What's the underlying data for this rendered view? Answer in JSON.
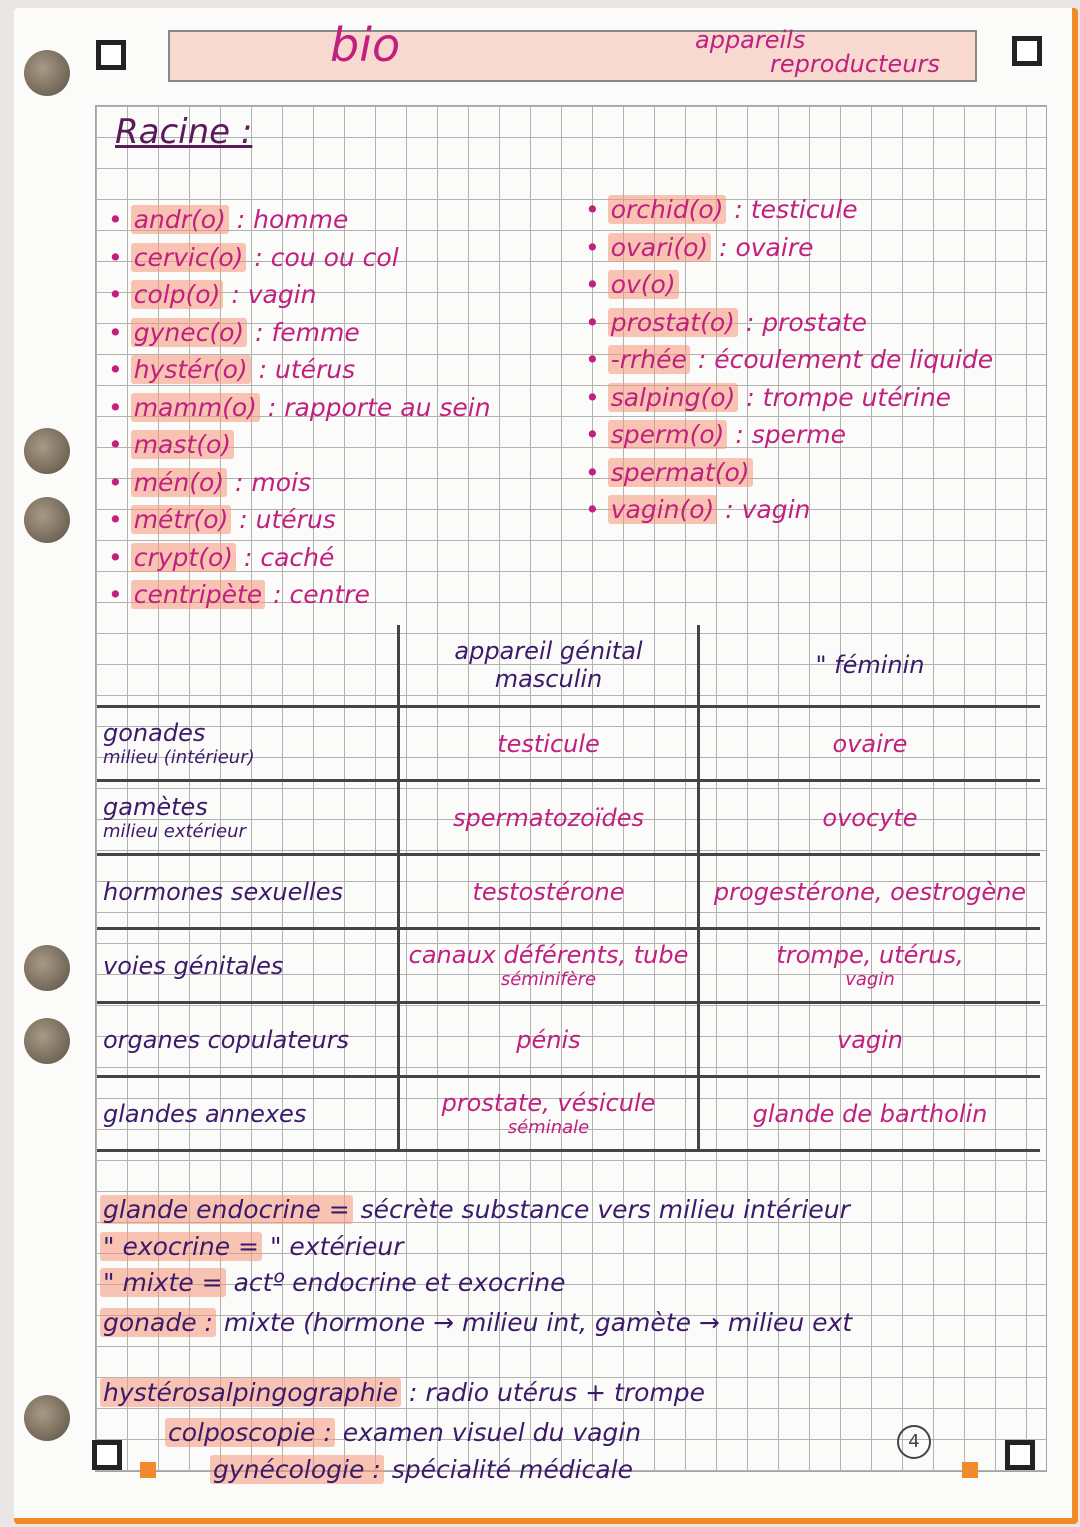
{
  "header": {
    "title": "bio",
    "subtitle_line1": "appareils",
    "subtitle_line2": "reproducteurs"
  },
  "section_heading": "Racine :",
  "roots_left": [
    {
      "root": "andr(o)",
      "meaning": "homme"
    },
    {
      "root": "cervic(o)",
      "meaning": "cou ou col"
    },
    {
      "root": "colp(o)",
      "meaning": "vagin"
    },
    {
      "root": "gynec(o)",
      "meaning": "femme"
    },
    {
      "root": "hystér(o)",
      "meaning": "utérus"
    },
    {
      "root": "mamm(o)",
      "meaning": "rapporte au sein"
    },
    {
      "root": "mast(o)",
      "meaning": ""
    },
    {
      "root": "mén(o)",
      "meaning": "mois"
    },
    {
      "root": "métr(o)",
      "meaning": "utérus"
    },
    {
      "root": "crypt(o)",
      "meaning": "caché"
    },
    {
      "root": "centripète",
      "meaning": "centre"
    }
  ],
  "roots_right": [
    {
      "root": "orchid(o)",
      "meaning": "testicule"
    },
    {
      "root": "ovari(o)",
      "meaning": "ovaire"
    },
    {
      "root": "ov(o)",
      "meaning": ""
    },
    {
      "root": "prostat(o)",
      "meaning": "prostate"
    },
    {
      "root": "-rrhée",
      "meaning": "écoulement de liquide"
    },
    {
      "root": "salping(o)",
      "meaning": "trompe utérine"
    },
    {
      "root": "sperm(o)",
      "meaning": "sperme"
    },
    {
      "root": "spermat(o)",
      "meaning": ""
    },
    {
      "root": "vagin(o)",
      "meaning": "vagin"
    }
  ],
  "table": {
    "headers": [
      "",
      "appareil génital masculin",
      "\" féminin"
    ],
    "rows": [
      {
        "label": "gonades",
        "note": "milieu (intérieur)",
        "male": "testicule",
        "male_note": "",
        "female": "ovaire",
        "female_note": ""
      },
      {
        "label": "gamètes",
        "note": "milieu extérieur",
        "male": "spermatozoïdes",
        "male_note": "",
        "female": "ovocyte",
        "female_note": ""
      },
      {
        "label": "hormones sexuelles",
        "note": "",
        "male": "testostérone",
        "male_note": "",
        "female": "progestérone, oestrogène",
        "female_note": ""
      },
      {
        "label": "voies génitales",
        "note": "",
        "male": "canaux déférents, tube",
        "male_note": "séminifère",
        "female": "trompe, utérus,",
        "female_note": "vagin"
      },
      {
        "label": "organes copulateurs",
        "note": "",
        "male": "pénis",
        "male_note": "",
        "female": "vagin",
        "female_note": ""
      },
      {
        "label": "glandes annexes",
        "note": "",
        "male": "prostate, vésicule",
        "male_note": "séminale",
        "female": "glande de bartholin",
        "female_note": ""
      }
    ]
  },
  "notes": [
    {
      "term": "glande endocrine =",
      "text": "sécrète substance vers milieu intérieur"
    },
    {
      "term": "\"  exocrine =",
      "text": "\"                                     extérieur"
    },
    {
      "term": "\"  mixte =",
      "text": "actº endocrine et exocrine"
    },
    {
      "term": "gonade :",
      "text": "mixte (hormone → milieu int, gamète → milieu ext"
    },
    {
      "term": "hystérosalpingographie",
      "text": ": radio utérus + trompe"
    },
    {
      "term": "colposcopie :",
      "text": "examen visuel du vagin"
    },
    {
      "term": "gynécologie :",
      "text": "spécialité médicale"
    }
  ],
  "page_number": "4",
  "colors": {
    "pink_ink": "#c1207f",
    "purple_ink": "#3c1a6a",
    "highlighter": "#f5967a",
    "binder_orange": "#f08a2a"
  }
}
